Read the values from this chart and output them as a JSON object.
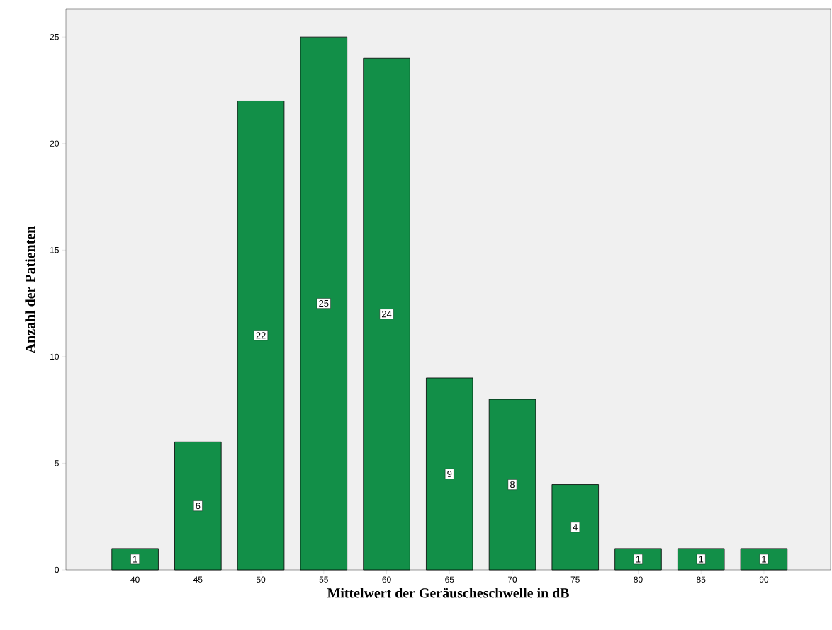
{
  "chart_data": {
    "type": "bar",
    "xlabel": "Mittelwert der Geräuscheschwelle in dB",
    "ylabel": "Anzahl der Patienten",
    "categories": [
      "40",
      "45",
      "50",
      "55",
      "60",
      "65",
      "70",
      "75",
      "80",
      "85",
      "90"
    ],
    "values": [
      1,
      6,
      22,
      25,
      24,
      9,
      8,
      4,
      1,
      1,
      1
    ],
    "color": "#128f48",
    "ylim": [
      0,
      26.3
    ],
    "yticks": [
      0,
      5,
      10,
      15,
      20,
      25
    ],
    "grid": false,
    "data_labels": true
  }
}
